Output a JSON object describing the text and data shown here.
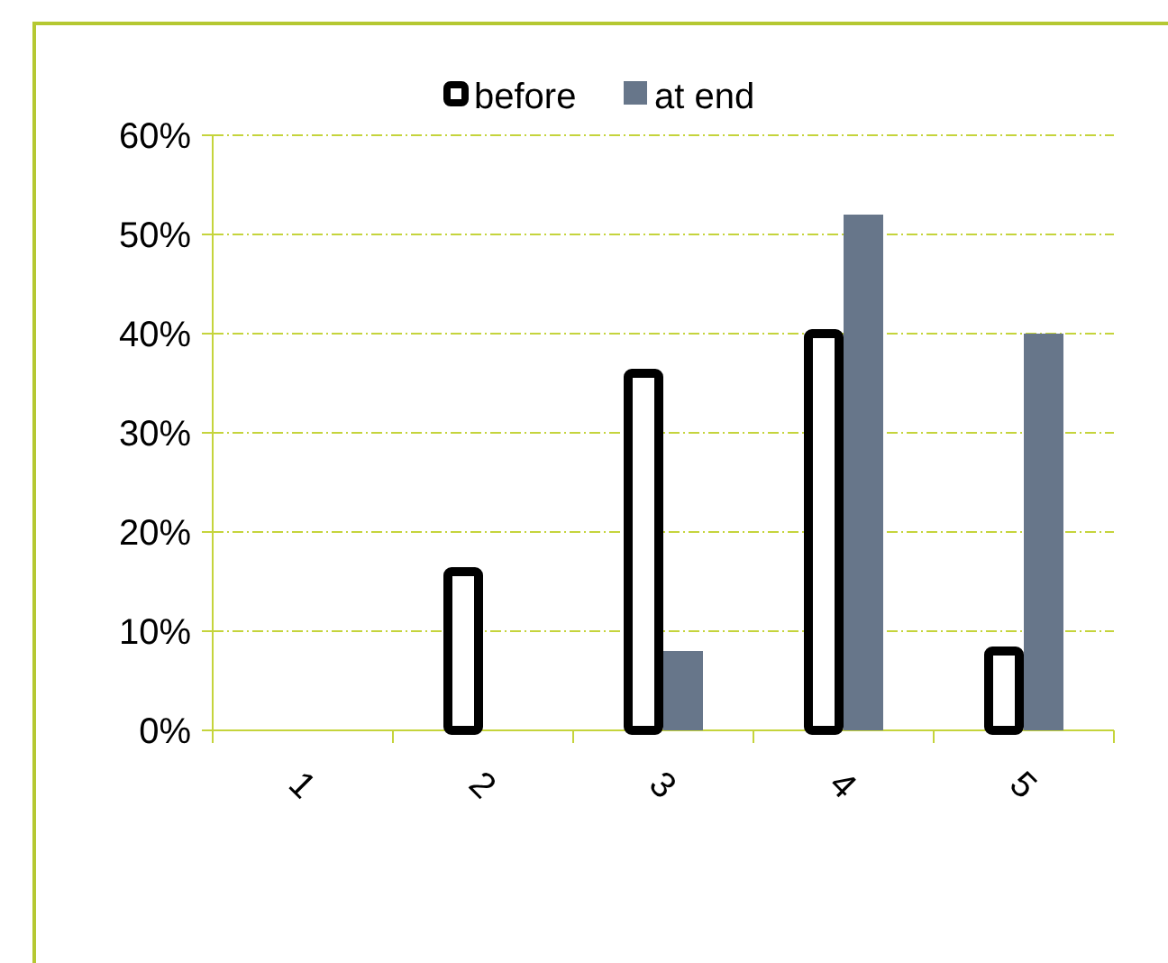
{
  "chart_data": {
    "type": "bar",
    "categories": [
      "1",
      "2",
      "3",
      "4",
      "5"
    ],
    "series": [
      {
        "name": "before",
        "color": "#ffffff",
        "values": [
          0,
          16,
          36,
          40,
          8
        ]
      },
      {
        "name": "at end",
        "color": "#67768a",
        "values": [
          0,
          0,
          8,
          52,
          40
        ]
      }
    ],
    "ylim": [
      0,
      60
    ],
    "yticks": [
      {
        "value": 0,
        "label": "0%"
      },
      {
        "value": 10,
        "label": "10%"
      },
      {
        "value": 20,
        "label": "20%"
      },
      {
        "value": 30,
        "label": "30%"
      },
      {
        "value": 40,
        "label": "40%"
      },
      {
        "value": 50,
        "label": "50%"
      },
      {
        "value": 60,
        "label": "60%"
      }
    ],
    "grid": "y",
    "legend": "top"
  }
}
